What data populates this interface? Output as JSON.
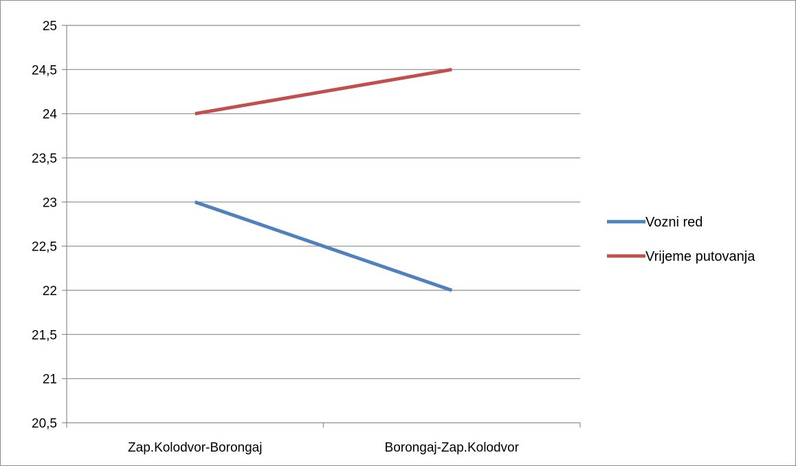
{
  "chart_data": {
    "type": "line",
    "title": "",
    "xlabel": "",
    "ylabel": "",
    "categories": [
      "Zap.Kolodvor-Borongaj",
      "Borongaj-Zap.Kolodvor"
    ],
    "series": [
      {
        "name": "Vozni red",
        "values": [
          23,
          22
        ],
        "color": "#4f81bd"
      },
      {
        "name": "Vrijeme putovanja",
        "values": [
          24,
          24.5
        ],
        "color": "#c0504d"
      }
    ],
    "ylim": [
      20.5,
      25
    ],
    "ytick_step": 0.5,
    "ytick_labels": [
      "20,5",
      "21",
      "21,5",
      "22",
      "22,5",
      "23",
      "23,5",
      "24",
      "24,5",
      "25"
    ],
    "grid": true,
    "legend_position": "right",
    "gridline_color": "#8c8c8c",
    "axis_color": "#8c8c8c"
  }
}
